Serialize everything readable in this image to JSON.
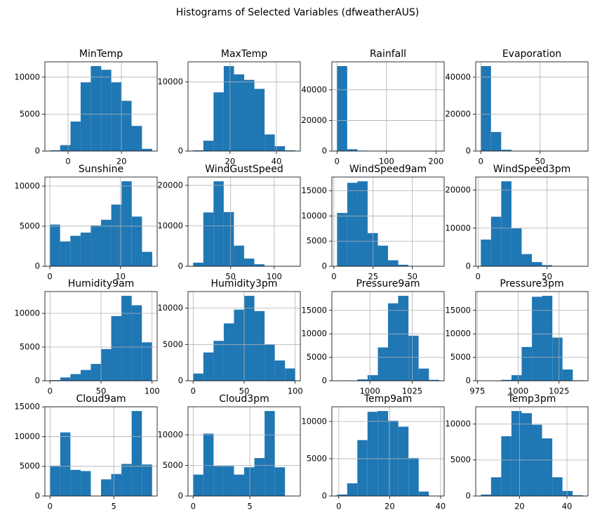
{
  "title": "Histograms of Selected Variables (dfweatherAUS)",
  "chart_data": [
    {
      "type": "histogram",
      "title": "MinTemp",
      "color": "#1f77b4",
      "grid": true,
      "bins": [
        -6.8,
        -3.0,
        0.9,
        4.7,
        8.5,
        12.4,
        16.2,
        20.0,
        23.8,
        27.7,
        31.5
      ],
      "counts": [
        100,
        800,
        4000,
        9300,
        11500,
        11000,
        9300,
        6800,
        3400,
        300
      ],
      "xlim": [
        -8.7,
        33.4
      ],
      "ylim": [
        0,
        12075
      ],
      "xticks": [
        0,
        20
      ],
      "yticks": [
        0,
        5000,
        10000
      ]
    },
    {
      "type": "histogram",
      "title": "MaxTemp",
      "color": "#1f77b4",
      "grid": true,
      "bins": [
        4.1,
        8.5,
        12.9,
        17.3,
        21.7,
        26.1,
        30.5,
        34.9,
        39.3,
        43.7,
        48.1
      ],
      "counts": [
        100,
        1500,
        8500,
        12300,
        11100,
        10300,
        9000,
        2400,
        700,
        100
      ],
      "xlim": [
        1.9,
        50.3
      ],
      "ylim": [
        0,
        12915
      ],
      "xticks": [
        20,
        40
      ],
      "yticks": [
        0,
        10000
      ]
    },
    {
      "type": "histogram",
      "title": "Rainfall",
      "color": "#1f77b4",
      "grid": true,
      "bins": [
        0,
        20.6,
        41.2,
        61.9,
        82.5,
        103.1,
        123.7,
        144.3,
        165.0,
        185.6,
        206.2
      ],
      "counts": [
        55500,
        1200,
        300,
        100,
        40,
        20,
        10,
        5,
        3,
        2
      ],
      "xlim": [
        -10.3,
        216.5
      ],
      "ylim": [
        0,
        58275
      ],
      "xticks": [
        0,
        100,
        200
      ],
      "yticks": [
        0,
        20000,
        40000
      ]
    },
    {
      "type": "histogram",
      "title": "Evaporation",
      "color": "#1f77b4",
      "grid": true,
      "bins": [
        0,
        8.6,
        17.2,
        25.9,
        34.5,
        43.1,
        51.7,
        60.3,
        69.0,
        77.6,
        86.2
      ],
      "counts": [
        46000,
        10300,
        700,
        100,
        20,
        10,
        5,
        2,
        1,
        1
      ],
      "xlim": [
        -4.3,
        90.5
      ],
      "ylim": [
        0,
        48300
      ],
      "xticks": [
        0,
        50
      ],
      "yticks": [
        0,
        20000,
        40000
      ]
    },
    {
      "type": "histogram",
      "title": "Sunshine",
      "color": "#1f77b4",
      "grid": true,
      "bins": [
        0,
        1.45,
        2.9,
        4.35,
        5.8,
        7.25,
        8.7,
        10.15,
        11.6,
        13.05,
        14.5
      ],
      "counts": [
        5200,
        3100,
        3800,
        4200,
        5100,
        5800,
        7700,
        10600,
        6200,
        1800
      ],
      "xlim": [
        -0.7,
        15.2
      ],
      "ylim": [
        0,
        11130
      ],
      "xticks": [
        0,
        10
      ],
      "yticks": [
        0,
        5000,
        10000
      ]
    },
    {
      "type": "histogram",
      "title": "WindGustSpeed",
      "color": "#1f77b4",
      "grid": true,
      "bins": [
        7,
        18.7,
        30.4,
        42.1,
        53.8,
        65.5,
        77.2,
        88.9,
        100.6,
        112.3,
        124
      ],
      "counts": [
        900,
        13300,
        21000,
        13400,
        5100,
        1900,
        500,
        100,
        20,
        10
      ],
      "xlim": [
        1.2,
        129.9
      ],
      "ylim": [
        0,
        22050
      ],
      "xticks": [
        50,
        100
      ],
      "yticks": [
        0,
        10000,
        20000
      ]
    },
    {
      "type": "histogram",
      "title": "WindSpeed9am",
      "color": "#1f77b4",
      "grid": true,
      "bins": [
        2,
        8.5,
        15,
        21.5,
        28,
        34.5,
        41,
        47.5,
        54,
        60.5,
        67
      ],
      "counts": [
        10600,
        16600,
        16900,
        6600,
        4100,
        1200,
        300,
        60,
        10,
        5
      ],
      "xlim": [
        -1.3,
        70.3
      ],
      "ylim": [
        0,
        17745
      ],
      "xticks": [
        0,
        25,
        50
      ],
      "yticks": [
        0,
        5000,
        10000,
        15000
      ]
    },
    {
      "type": "histogram",
      "title": "WindSpeed3pm",
      "color": "#1f77b4",
      "grid": true,
      "bins": [
        2,
        9.4,
        16.8,
        24.2,
        31.6,
        39,
        46.4,
        53.8,
        61.2,
        68.6,
        76
      ],
      "counts": [
        7000,
        13000,
        22300,
        10000,
        3200,
        1100,
        300,
        60,
        10,
        5
      ],
      "xlim": [
        -1.7,
        79.7
      ],
      "ylim": [
        0,
        23415
      ],
      "xticks": [
        0,
        50
      ],
      "yticks": [
        0,
        10000,
        20000
      ]
    },
    {
      "type": "histogram",
      "title": "Humidity9am",
      "color": "#1f77b4",
      "grid": true,
      "bins": [
        0,
        10,
        20,
        30,
        40,
        50,
        60,
        70,
        80,
        90,
        100
      ],
      "counts": [
        100,
        500,
        1000,
        1600,
        2500,
        4700,
        9600,
        12600,
        11200,
        5700
      ],
      "xlim": [
        -5,
        105
      ],
      "ylim": [
        0,
        13230
      ],
      "xticks": [
        0,
        50,
        100
      ],
      "yticks": [
        0,
        5000,
        10000
      ]
    },
    {
      "type": "histogram",
      "title": "Humidity3pm",
      "color": "#1f77b4",
      "grid": true,
      "bins": [
        0,
        10,
        20,
        30,
        40,
        50,
        60,
        70,
        80,
        90,
        100
      ],
      "counts": [
        1000,
        3900,
        5500,
        7900,
        9800,
        11700,
        9600,
        5000,
        2800,
        1700
      ],
      "xlim": [
        -5,
        105
      ],
      "ylim": [
        0,
        12285
      ],
      "xticks": [
        0,
        50,
        100
      ],
      "yticks": [
        0,
        5000,
        10000
      ]
    },
    {
      "type": "histogram",
      "title": "Pressure9am",
      "color": "#1f77b4",
      "grid": true,
      "bins": [
        980.5,
        986.5,
        992.6,
        998.6,
        1004.7,
        1010.7,
        1016.7,
        1022.8,
        1028.8,
        1034.9,
        1040.9
      ],
      "counts": [
        20,
        60,
        300,
        1200,
        7100,
        16500,
        18100,
        9600,
        2600,
        200
      ],
      "xlim": [
        977.5,
        1043.9
      ],
      "ylim": [
        0,
        19005
      ],
      "xticks": [
        1000,
        1025
      ],
      "yticks": [
        0,
        5000,
        10000,
        15000
      ]
    },
    {
      "type": "histogram",
      "title": "Pressure3pm",
      "color": "#1f77b4",
      "grid": true,
      "bins": [
        977.1,
        983.4,
        989.6,
        995.9,
        1002.1,
        1008.4,
        1014.6,
        1020.9,
        1027.1,
        1033.4,
        1039.6
      ],
      "counts": [
        10,
        40,
        200,
        1200,
        7200,
        17900,
        18100,
        9200,
        2400,
        100
      ],
      "xlim": [
        974.0,
        1042.7
      ],
      "ylim": [
        0,
        19005
      ],
      "xticks": [
        975,
        1000,
        1025
      ],
      "yticks": [
        0,
        5000,
        10000,
        15000
      ]
    },
    {
      "type": "histogram",
      "title": "Cloud9am",
      "color": "#1f77b4",
      "grid": true,
      "bins": [
        0,
        0.8,
        1.6,
        2.4,
        3.2,
        4,
        4.8,
        5.6,
        6.4,
        7.2,
        8
      ],
      "counts": [
        5100,
        10700,
        4400,
        4200,
        0,
        2800,
        3700,
        5400,
        14300,
        5300
      ],
      "xlim": [
        -0.4,
        8.4
      ],
      "ylim": [
        0,
        15015
      ],
      "xticks": [
        0,
        5
      ],
      "yticks": [
        0,
        5000,
        10000,
        15000
      ]
    },
    {
      "type": "histogram",
      "title": "Cloud3pm",
      "color": "#1f77b4",
      "grid": true,
      "bins": [
        0,
        0.9,
        1.8,
        2.7,
        3.6,
        4.5,
        5.4,
        6.3,
        7.2,
        8.1,
        9
      ],
      "counts": [
        3500,
        10200,
        4900,
        4900,
        3500,
        4700,
        6200,
        13900,
        4700,
        0
      ],
      "xlim": [
        -0.45,
        9.45
      ],
      "ylim": [
        0,
        14595
      ],
      "xticks": [
        0,
        5
      ],
      "yticks": [
        0,
        5000,
        10000
      ]
    },
    {
      "type": "histogram",
      "title": "Temp9am",
      "color": "#1f77b4",
      "grid": true,
      "bins": [
        -0.7,
        3.3,
        7.3,
        11.3,
        15.3,
        19.4,
        23.4,
        27.4,
        31.4,
        35.4,
        39.4
      ],
      "counts": [
        200,
        1700,
        7500,
        11300,
        11400,
        10100,
        9300,
        5100,
        600,
        30
      ],
      "xlim": [
        -2.7,
        41.4
      ],
      "ylim": [
        0,
        11970
      ],
      "xticks": [
        0,
        20,
        40
      ],
      "yticks": [
        0,
        5000,
        10000
      ]
    },
    {
      "type": "histogram",
      "title": "Temp3pm",
      "color": "#1f77b4",
      "grid": true,
      "bins": [
        3.7,
        8.0,
        12.3,
        16.6,
        20.9,
        25.2,
        29.5,
        33.8,
        38.1,
        42.4,
        46.7
      ],
      "counts": [
        200,
        2600,
        8300,
        11800,
        11500,
        9900,
        8000,
        2600,
        700,
        100
      ],
      "xlim": [
        1.55,
        48.85
      ],
      "ylim": [
        0,
        12390
      ],
      "xticks": [
        20,
        40
      ],
      "yticks": [
        0,
        5000,
        10000
      ]
    }
  ]
}
